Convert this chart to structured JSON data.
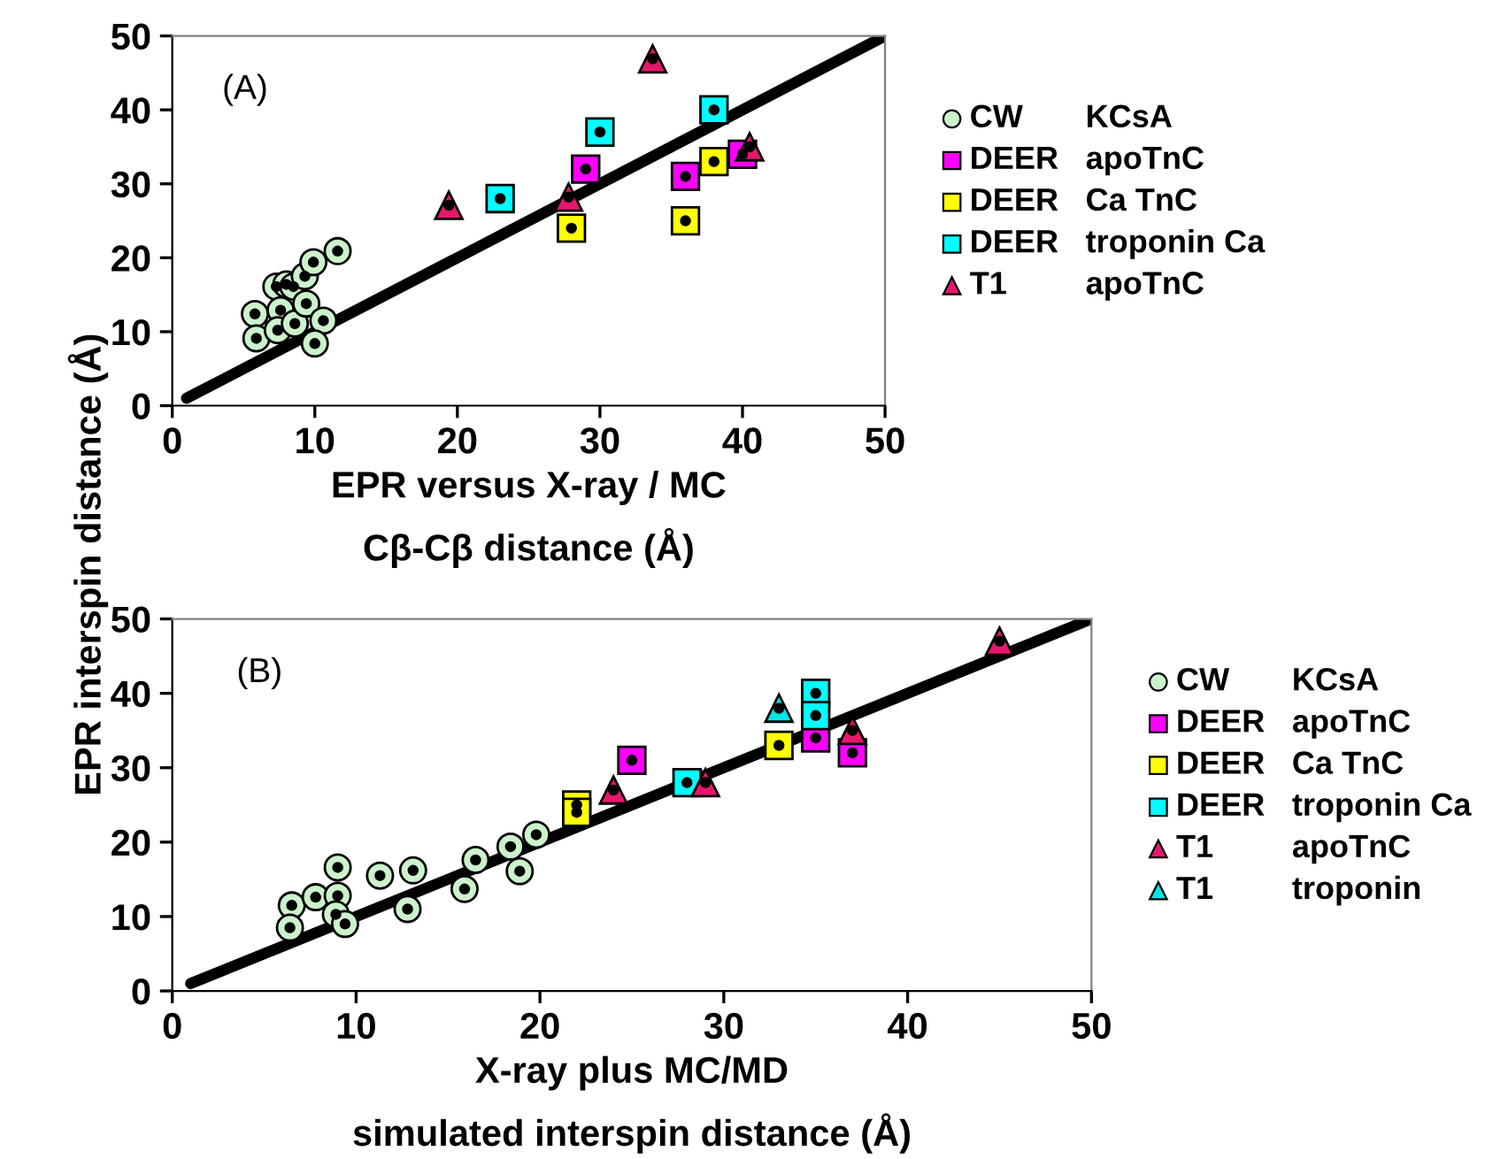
{
  "chart_data": [
    {
      "type": "scatter",
      "ylabel": "EPR interspin distance (Å)",
      "xlabel": "EPR versus X-ray / MC\nCβ-Cβ distance (Å)",
      "annotations": [
        "(A)"
      ],
      "xlim": [
        0,
        50
      ],
      "ylim": [
        0,
        50
      ],
      "xticks": [
        0,
        10,
        20,
        30,
        40,
        50
      ],
      "yticks": [
        0,
        10,
        20,
        30,
        40,
        50
      ],
      "grid": false,
      "legend": "right",
      "series": [
        {
          "type": "line",
          "marker": "none",
          "color": "#000000",
          "x": [
            1,
            50
          ],
          "values": [
            1,
            50
          ]
        },
        {
          "name": "CW KCsA",
          "marker": "circle",
          "color": "#ccf2cc",
          "x": [
            5.8,
            5.9,
            7.3,
            8.0,
            8.5,
            7.6,
            7.4,
            8.6,
            9.3,
            9.4,
            9.9,
            10.6,
            10.0,
            11.6
          ],
          "values": [
            12.4,
            9.1,
            16.1,
            16.4,
            16.1,
            12.9,
            10.2,
            11.1,
            17.5,
            13.8,
            19.4,
            11.5,
            8.4,
            20.9
          ]
        },
        {
          "name": "DEER apoTnC",
          "marker": "square",
          "color": "#ff00ff",
          "x": [
            29.0,
            36.0,
            40.0
          ],
          "values": [
            32.0,
            31.0,
            34.0
          ]
        },
        {
          "name": "DEER Ca TnC",
          "marker": "square",
          "color": "#ffff00",
          "x": [
            28.0,
            36.0,
            38.0
          ],
          "values": [
            24.0,
            25.0,
            33.0
          ]
        },
        {
          "name": "DEER troponin Ca",
          "marker": "square",
          "color": "#00ffff",
          "x": [
            23.0,
            30.0,
            38.0
          ],
          "values": [
            28.0,
            37.0,
            40.0
          ]
        },
        {
          "name": "T1 apoTnC",
          "marker": "triangle",
          "color": "#e6186e",
          "x": [
            19.4,
            27.8,
            33.7,
            40.5
          ],
          "values": [
            27.1,
            28.2,
            46.9,
            35.0
          ]
        }
      ]
    },
    {
      "type": "scatter",
      "xlabel": "X-ray plus MC/MD\nsimulated interspin distance (Å)",
      "annotations": [
        "(B)"
      ],
      "xlim": [
        0,
        50
      ],
      "ylim": [
        0,
        50
      ],
      "xticks": [
        0,
        10,
        20,
        30,
        40,
        50
      ],
      "yticks": [
        0,
        10,
        20,
        30,
        40,
        50
      ],
      "grid": false,
      "legend": "right",
      "series": [
        {
          "type": "line",
          "marker": "none",
          "color": "#000000",
          "x": [
            1,
            50
          ],
          "values": [
            1,
            50
          ]
        },
        {
          "name": "CW KCsA",
          "marker": "circle",
          "color": "#ccf2cc",
          "x": [
            6.5,
            6.4,
            7.8,
            9.0,
            9.0,
            8.9,
            9.4,
            11.3,
            12.8,
            13.1,
            15.9,
            16.5,
            18.4,
            18.9,
            19.8
          ],
          "values": [
            11.5,
            8.5,
            12.6,
            16.6,
            12.8,
            10.3,
            9.0,
            15.5,
            11.0,
            16.2,
            13.7,
            17.6,
            19.4,
            16.1,
            21.0
          ]
        },
        {
          "name": "DEER apoTnC",
          "marker": "square",
          "color": "#ff00ff",
          "x": [
            25.0,
            35.0,
            37.0
          ],
          "values": [
            31.0,
            34.0,
            32.0
          ]
        },
        {
          "name": "DEER Ca TnC",
          "marker": "square",
          "color": "#ffff00",
          "x": [
            22.0,
            22.0,
            33.0
          ],
          "values": [
            25.0,
            24.0,
            33.0
          ]
        },
        {
          "name": "DEER troponin Ca",
          "marker": "square",
          "color": "#00ffff",
          "x": [
            28.0,
            35.0,
            35.0
          ],
          "values": [
            28.0,
            40.0,
            37.0
          ]
        },
        {
          "name": "T1 apoTnC",
          "marker": "triangle",
          "color": "#e6186e",
          "x": [
            24.0,
            29.0,
            37.0,
            45.0
          ],
          "values": [
            27.0,
            28.0,
            35.0,
            47.0
          ]
        },
        {
          "name": "T1 troponin",
          "marker": "triangle",
          "color": "#00e6e6",
          "x": [
            33.0
          ],
          "values": [
            38.0
          ]
        }
      ]
    }
  ]
}
